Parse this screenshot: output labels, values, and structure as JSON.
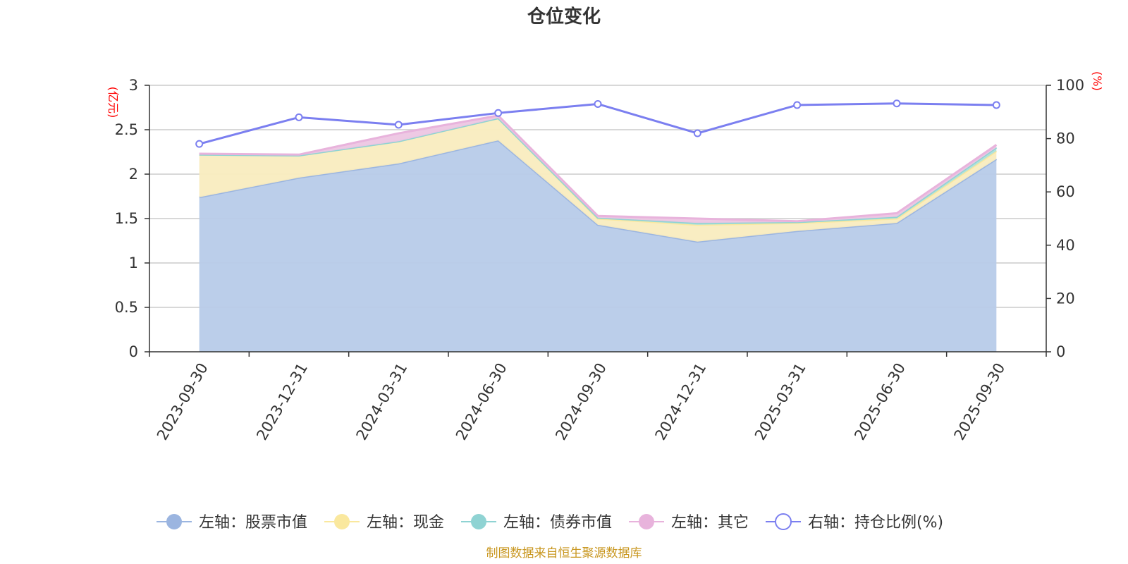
{
  "chart_data": {
    "type": "area",
    "title": "仓位变化",
    "categories": [
      "2023-09-30",
      "2023-12-31",
      "2024-03-31",
      "2024-06-30",
      "2024-09-30",
      "2024-12-31",
      "2025-03-31",
      "2025-06-30",
      "2025-09-30"
    ],
    "left_axis": {
      "unit": "(亿元)",
      "ylim": [
        0,
        3
      ],
      "ticks": [
        "0",
        "0.5",
        "1",
        "1.5",
        "2",
        "2.5",
        "3"
      ]
    },
    "right_axis": {
      "unit": "(%)",
      "ylim": [
        0,
        100
      ],
      "ticks": [
        "0",
        "20",
        "40",
        "60",
        "80",
        "100"
      ]
    },
    "series": [
      {
        "name": "左轴：股票市值",
        "axis": "left",
        "stacked": true,
        "color": "#9bb5e0",
        "fill": "#b7cbe9",
        "values": [
          1.74,
          1.96,
          2.12,
          2.38,
          1.43,
          1.24,
          1.36,
          1.45,
          2.17
        ]
      },
      {
        "name": "左轴：现金",
        "axis": "left",
        "stacked": true,
        "color": "#fae89e",
        "fill": "#f9ecbf",
        "values": [
          0.48,
          0.25,
          0.25,
          0.25,
          0.07,
          0.19,
          0.09,
          0.05,
          0.09
        ]
      },
      {
        "name": "左轴：债券市值",
        "axis": "left",
        "stacked": true,
        "color": "#8fd3d3",
        "fill": "#aee0dc",
        "values": [
          0.0,
          0.0,
          0.0,
          0.0,
          0.01,
          0.02,
          0.01,
          0.02,
          0.04
        ]
      },
      {
        "name": "左轴：其它",
        "axis": "left",
        "stacked": true,
        "color": "#e8b3dc",
        "fill": "#edc6e3",
        "values": [
          0.01,
          0.01,
          0.09,
          0.03,
          0.02,
          0.05,
          0.01,
          0.04,
          0.03
        ]
      },
      {
        "name": "右轴：持仓比例(%)",
        "axis": "right",
        "type": "line",
        "color": "#7b7ff0",
        "values": [
          78,
          88,
          85.2,
          89.6,
          93,
          82,
          92.6,
          93.2,
          92.6
        ]
      }
    ],
    "legend_position": "bottom",
    "grid": true
  },
  "source_note": "制图数据来自恒生聚源数据库"
}
